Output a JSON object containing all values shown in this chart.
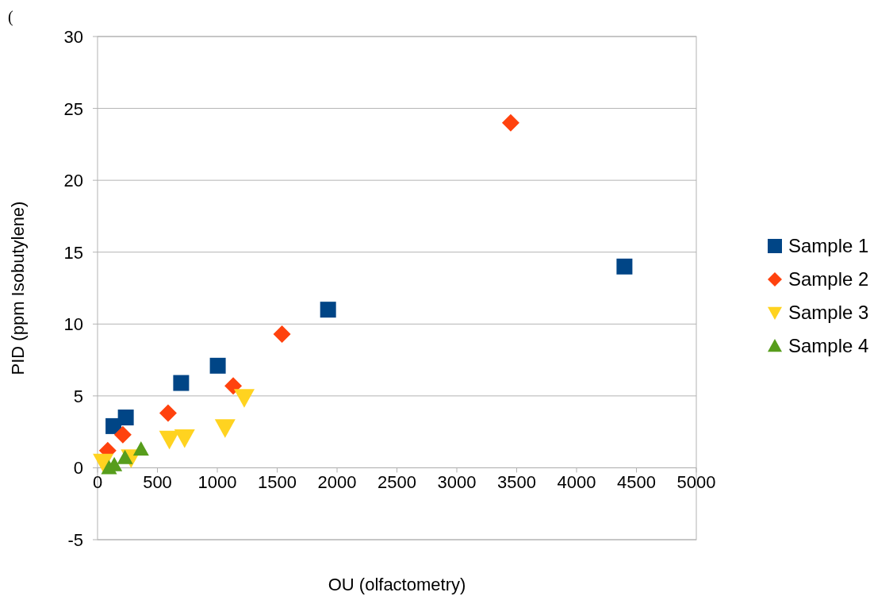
{
  "chart_data": {
    "type": "scatter",
    "xlabel": "OU (olfactometry)",
    "ylabel": "PID (ppm Isobutylene)",
    "annotations": [
      "("
    ],
    "xlim": [
      0,
      5000
    ],
    "xticks": [
      0,
      500,
      1000,
      1500,
      2000,
      2500,
      3000,
      3500,
      4000,
      4500,
      5000
    ],
    "ylim": [
      -5,
      30
    ],
    "yticks": [
      -5,
      0,
      5,
      10,
      15,
      20,
      25,
      30
    ],
    "grid": "y",
    "legend": "right",
    "series": [
      {
        "name": "Sample 1",
        "color": "#004586",
        "marker": "square",
        "x": [
          133,
          236,
          698,
          1004,
          1925,
          4400
        ],
        "values": [
          2.9,
          3.5,
          5.9,
          7.1,
          11,
          14
        ]
      },
      {
        "name": "Sample 2",
        "color": "#ff420e",
        "marker": "diamond",
        "x": [
          85,
          211,
          589,
          1133,
          1540,
          3450
        ],
        "values": [
          1.2,
          2.3,
          3.8,
          5.7,
          9.3,
          24
        ]
      },
      {
        "name": "Sample 3",
        "color": "#ffd320",
        "marker": "triangle-down",
        "x": [
          47,
          280,
          600,
          727,
          1065,
          1225
        ],
        "values": [
          0.4,
          0.7,
          2,
          2.1,
          2.8,
          4.9
        ]
      },
      {
        "name": "Sample 4",
        "color": "#579d1c",
        "marker": "triangle",
        "x": [
          96,
          140,
          229,
          363
        ],
        "values": [
          0,
          0.2,
          0.7,
          1.3
        ]
      }
    ]
  }
}
